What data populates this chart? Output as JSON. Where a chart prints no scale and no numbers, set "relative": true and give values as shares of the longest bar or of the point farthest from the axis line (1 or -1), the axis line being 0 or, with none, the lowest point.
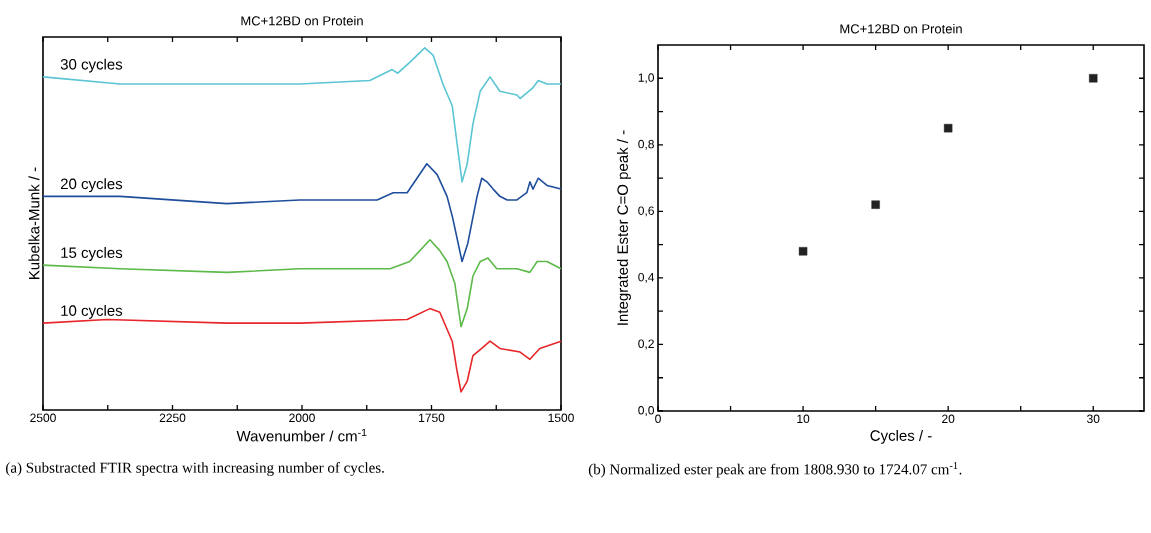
{
  "chart_data": [
    {
      "type": "line",
      "title": "MC+12BD on Protein",
      "xlabel": "Wavenumber / cm$^{-1}$",
      "ylabel": "Kubelka-Munk / -",
      "relative": true,
      "xlim": [
        2500,
        1500
      ],
      "xticks": [
        2500,
        {
          "value": 2375,
          "label": null
        },
        2250,
        {
          "value": 2125,
          "label": null
        },
        2000,
        {
          "value": 1875,
          "label": null
        },
        1750,
        {
          "value": 1625,
          "label": null
        },
        1500
      ],
      "tick_labels": "x",
      "marker": "none",
      "line_style": "solid",
      "annotations": [
        "(a) Substracted FTIR spectra with increasing number of cycles."
      ],
      "series": [
        {
          "name": "30 cycles",
          "color": "#5bc5d4",
          "x": [
            2500,
            2351,
            2145,
            2004,
            1869,
            1826,
            1815,
            1792,
            1763,
            1747,
            1728,
            1710,
            1701,
            1691,
            1681,
            1670,
            1656,
            1637,
            1618,
            1585,
            1579,
            1554,
            1544,
            1527,
            1506,
            1500
          ],
          "values": [
            0.92,
            0.9,
            0.9,
            0.9,
            0.91,
            0.94,
            0.93,
            0.96,
            1.0,
            0.98,
            0.9,
            0.84,
            0.74,
            0.63,
            0.68,
            0.79,
            0.88,
            0.92,
            0.88,
            0.87,
            0.86,
            0.89,
            0.91,
            0.9,
            0.9,
            0.9
          ]
        },
        {
          "name": "20 cycles",
          "color": "#1f4e9c",
          "x": [
            2500,
            2351,
            2145,
            2004,
            1855,
            1824,
            1797,
            1759,
            1739,
            1720,
            1709,
            1691,
            1680,
            1662,
            1653,
            1643,
            1631,
            1618,
            1604,
            1585,
            1566,
            1560,
            1554,
            1544,
            1527,
            1500
          ],
          "values": [
            0.59,
            0.59,
            0.57,
            0.58,
            0.58,
            0.6,
            0.6,
            0.68,
            0.65,
            0.59,
            0.53,
            0.41,
            0.46,
            0.59,
            0.64,
            0.63,
            0.61,
            0.59,
            0.58,
            0.58,
            0.6,
            0.63,
            0.61,
            0.64,
            0.62,
            0.61
          ]
        },
        {
          "name": "15 cycles",
          "color": "#5db94a",
          "x": [
            2500,
            2351,
            2145,
            2004,
            1830,
            1792,
            1753,
            1734,
            1720,
            1705,
            1693,
            1681,
            1670,
            1656,
            1641,
            1624,
            1585,
            1560,
            1546,
            1527,
            1500
          ],
          "values": [
            0.4,
            0.39,
            0.38,
            0.39,
            0.39,
            0.41,
            0.47,
            0.44,
            0.41,
            0.35,
            0.23,
            0.28,
            0.37,
            0.41,
            0.42,
            0.39,
            0.39,
            0.38,
            0.41,
            0.41,
            0.39
          ]
        },
        {
          "name": "10 cycles",
          "color": "#e8262a",
          "x": [
            2500,
            2376,
            2145,
            2004,
            1797,
            1753,
            1734,
            1710,
            1701,
            1693,
            1681,
            1670,
            1653,
            1637,
            1618,
            1579,
            1560,
            1541,
            1500
          ],
          "values": [
            0.24,
            0.25,
            0.24,
            0.24,
            0.25,
            0.28,
            0.27,
            0.19,
            0.11,
            0.05,
            0.08,
            0.15,
            0.17,
            0.19,
            0.17,
            0.16,
            0.14,
            0.17,
            0.19
          ]
        }
      ]
    },
    {
      "type": "scatter",
      "title": "MC+12BD on Protein",
      "xlabel": "Cycles / -",
      "ylabel": "Integrated  Ester C=O peak  / -",
      "x": [
        10,
        15,
        20,
        30
      ],
      "values": [
        0.48,
        0.62,
        0.85,
        1.0
      ],
      "color": "#222222",
      "marker": "square",
      "xlim": [
        0,
        33.5
      ],
      "xticks": [
        0,
        {
          "value": 5,
          "label": null
        },
        10,
        {
          "value": 15,
          "label": null
        },
        20,
        {
          "value": 25,
          "label": null
        },
        30
      ],
      "ylim": [
        0,
        1.1
      ],
      "yticks": [
        {
          "value": 0,
          "label": "0,0"
        },
        {
          "value": 0.1,
          "label": null
        },
        {
          "value": 0.2,
          "label": "0,2"
        },
        {
          "value": 0.3,
          "label": null
        },
        {
          "value": 0.4,
          "label": "0,4"
        },
        {
          "value": 0.5,
          "label": null
        },
        {
          "value": 0.6,
          "label": "0,6"
        },
        {
          "value": 0.7,
          "label": null
        },
        {
          "value": 0.8,
          "label": "0,8"
        },
        {
          "value": 0.9,
          "label": null
        },
        {
          "value": 1.0,
          "label": "1,0"
        }
      ],
      "annotations": [
        "(b) Normalized ester peak are from 1808.930 to 1724.07 cm$^{-1}$."
      ]
    }
  ]
}
